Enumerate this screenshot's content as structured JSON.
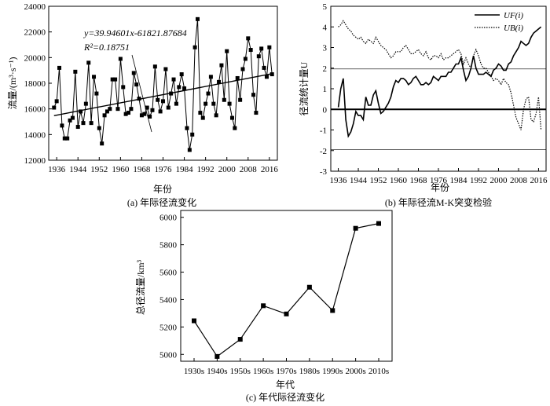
{
  "chart_data": [
    {
      "id": "a",
      "type": "line",
      "caption": "(a) 年际径流变化",
      "xlabel": "年份",
      "ylabel": "流量/(m³·s⁻¹)",
      "xlim": [
        1933,
        2019
      ],
      "ylim": [
        12000,
        24000
      ],
      "xticks": [
        1936,
        1944,
        1952,
        1960,
        1968,
        1976,
        1984,
        1992,
        2000,
        2008,
        2016
      ],
      "yticks": [
        12000,
        14000,
        16000,
        18000,
        20000,
        22000,
        24000
      ],
      "x": [
        1935,
        1936,
        1937,
        1938,
        1939,
        1940,
        1941,
        1942,
        1943,
        1944,
        1945,
        1946,
        1947,
        1948,
        1949,
        1950,
        1951,
        1952,
        1953,
        1954,
        1955,
        1956,
        1957,
        1958,
        1959,
        1960,
        1961,
        1962,
        1963,
        1964,
        1965,
        1966,
        1967,
        1968,
        1969,
        1970,
        1971,
        1972,
        1973,
        1974,
        1975,
        1976,
        1977,
        1978,
        1979,
        1980,
        1981,
        1982,
        1983,
        1984,
        1985,
        1986,
        1987,
        1988,
        1989,
        1990,
        1991,
        1992,
        1993,
        1994,
        1995,
        1996,
        1997,
        1998,
        1999,
        2000,
        2001,
        2002,
        2003,
        2004,
        2005,
        2006,
        2007,
        2008,
        2009,
        2010,
        2011,
        2012,
        2013,
        2014,
        2015,
        2016,
        2017
      ],
      "y": [
        16100,
        16600,
        19200,
        14700,
        13700,
        13700,
        15100,
        15300,
        18900,
        14600,
        15800,
        14900,
        16400,
        19600,
        14900,
        18500,
        17200,
        14500,
        13300,
        15500,
        15800,
        16000,
        18300,
        18300,
        16000,
        19900,
        17700,
        15600,
        15700,
        16000,
        18800,
        17900,
        16800,
        15500,
        15600,
        16100,
        15400,
        15900,
        19300,
        16700,
        15800,
        16600,
        19100,
        16100,
        17200,
        18300,
        16400,
        17700,
        18700,
        17600,
        14500,
        12800,
        14000,
        20800,
        23000,
        15700,
        15300,
        16400,
        17200,
        18500,
        16400,
        15500,
        18100,
        19400,
        16700,
        20500,
        16400,
        15300,
        14500,
        18400,
        16700,
        19100,
        19900,
        21500,
        20600,
        17100,
        15700,
        20100,
        20700,
        19200,
        18500,
        20800,
        18700
      ],
      "trend": {
        "slope": 39.94601,
        "intercept": -61821.87684
      },
      "annotation": {
        "equation": "y=39.94601x-61821.87684",
        "r2": "R²=0.18751"
      }
    },
    {
      "id": "b",
      "type": "line",
      "caption": "(b) 年际径流M-K突变检验",
      "xlabel": "年份",
      "ylabel": "径流统计量U",
      "xlim": [
        1933,
        2019
      ],
      "ylim": [
        -3,
        5
      ],
      "xticks": [
        1936,
        1944,
        1952,
        1960,
        1968,
        1976,
        1984,
        1992,
        2000,
        2008,
        2016
      ],
      "yticks": [
        -3,
        -2,
        -1,
        0,
        1,
        2,
        3,
        4,
        5
      ],
      "reference_lines": [
        1.96,
        0,
        -1.96
      ],
      "legend": [
        "UF(i)",
        "UB(i)"
      ],
      "legend_position": "top-right",
      "series": [
        {
          "name": "UF(i)",
          "style": "solid",
          "x": [
            1936,
            1937,
            1938,
            1939,
            1940,
            1941,
            1942,
            1943,
            1944,
            1945,
            1946,
            1947,
            1948,
            1949,
            1950,
            1951,
            1952,
            1953,
            1954,
            1955,
            1956,
            1957,
            1958,
            1959,
            1960,
            1961,
            1962,
            1963,
            1964,
            1965,
            1966,
            1967,
            1968,
            1969,
            1970,
            1971,
            1972,
            1973,
            1974,
            1975,
            1976,
            1977,
            1978,
            1979,
            1980,
            1981,
            1982,
            1983,
            1984,
            1985,
            1986,
            1987,
            1988,
            1989,
            1990,
            1991,
            1992,
            1993,
            1994,
            1995,
            1996,
            1997,
            1998,
            1999,
            2000,
            2001,
            2002,
            2003,
            2004,
            2005,
            2006,
            2007,
            2008,
            2009,
            2010,
            2011,
            2012,
            2013,
            2014,
            2015,
            2016,
            2017
          ],
          "y": [
            0.1,
            1.0,
            1.5,
            -0.5,
            -1.3,
            -1.1,
            -0.7,
            -0.1,
            -0.3,
            -0.3,
            -0.5,
            0.6,
            0.2,
            0.2,
            0.7,
            0.9,
            0.3,
            -0.2,
            -0.1,
            0.1,
            0.3,
            0.6,
            1.1,
            1.4,
            1.3,
            1.5,
            1.5,
            1.4,
            1.2,
            1.3,
            1.5,
            1.6,
            1.4,
            1.2,
            1.2,
            1.3,
            1.2,
            1.3,
            1.6,
            1.5,
            1.4,
            1.6,
            1.6,
            1.6,
            1.8,
            1.8,
            2.0,
            2.2,
            2.2,
            2.5,
            1.9,
            1.4,
            1.6,
            2.0,
            2.6,
            2.0,
            1.7,
            1.7,
            1.7,
            1.8,
            1.7,
            1.6,
            1.9,
            2.0,
            2.2,
            2.1,
            1.9,
            1.9,
            2.2,
            2.3,
            2.6,
            2.8,
            3.0,
            3.3,
            3.2,
            3.1,
            3.2,
            3.5,
            3.7,
            3.8,
            3.9,
            4.0
          ]
        },
        {
          "name": "UB(i)",
          "style": "dotted",
          "x": [
            1936,
            1937,
            1938,
            1939,
            1940,
            1941,
            1942,
            1943,
            1944,
            1945,
            1946,
            1947,
            1948,
            1949,
            1950,
            1951,
            1952,
            1953,
            1954,
            1955,
            1956,
            1957,
            1958,
            1959,
            1960,
            1961,
            1962,
            1963,
            1964,
            1965,
            1966,
            1967,
            1968,
            1969,
            1970,
            1971,
            1972,
            1973,
            1974,
            1975,
            1976,
            1977,
            1978,
            1979,
            1980,
            1981,
            1982,
            1983,
            1984,
            1985,
            1986,
            1987,
            1988,
            1989,
            1990,
            1991,
            1992,
            1993,
            1994,
            1995,
            1996,
            1997,
            1998,
            1999,
            2000,
            2001,
            2002,
            2003,
            2004,
            2005,
            2006,
            2007,
            2008,
            2009,
            2010,
            2011,
            2012,
            2013,
            2014,
            2015,
            2016,
            2017
          ],
          "y": [
            4.0,
            4.1,
            4.3,
            4.1,
            3.9,
            3.8,
            3.6,
            3.5,
            3.4,
            3.5,
            3.3,
            3.2,
            3.4,
            3.3,
            3.2,
            3.5,
            3.3,
            3.1,
            3.0,
            2.9,
            2.7,
            2.5,
            2.6,
            2.8,
            2.8,
            2.8,
            3.0,
            3.1,
            2.9,
            2.7,
            2.7,
            2.8,
            2.9,
            2.7,
            2.6,
            2.8,
            2.5,
            2.4,
            2.6,
            2.6,
            2.5,
            2.7,
            2.4,
            2.5,
            2.5,
            2.6,
            2.7,
            2.8,
            2.9,
            2.7,
            2.2,
            2.5,
            2.2,
            2.0,
            2.6,
            2.9,
            2.6,
            2.2,
            2.0,
            2.0,
            1.8,
            1.6,
            1.4,
            1.5,
            1.4,
            1.2,
            1.5,
            1.3,
            1.2,
            0.8,
            0.2,
            -0.4,
            -0.7,
            -1.0,
            0.0,
            0.5,
            0.6,
            -0.5,
            -0.6,
            -0.2,
            0.6,
            -1.0
          ]
        }
      ]
    },
    {
      "id": "c",
      "type": "line",
      "caption": "(c) 年代际径流变化",
      "xlabel": "年代",
      "ylabel": "总径流量/km³",
      "ylim": [
        4950,
        6050
      ],
      "yticks": [
        5000,
        5200,
        5400,
        5600,
        5800,
        6000
      ],
      "categories": [
        "1930s",
        "1940s",
        "1950s",
        "1960s",
        "1970s",
        "1980s",
        "1990s",
        "2000s",
        "2010s"
      ],
      "values": [
        5245,
        4985,
        5110,
        5355,
        5295,
        5490,
        5320,
        5920,
        5955
      ]
    }
  ]
}
